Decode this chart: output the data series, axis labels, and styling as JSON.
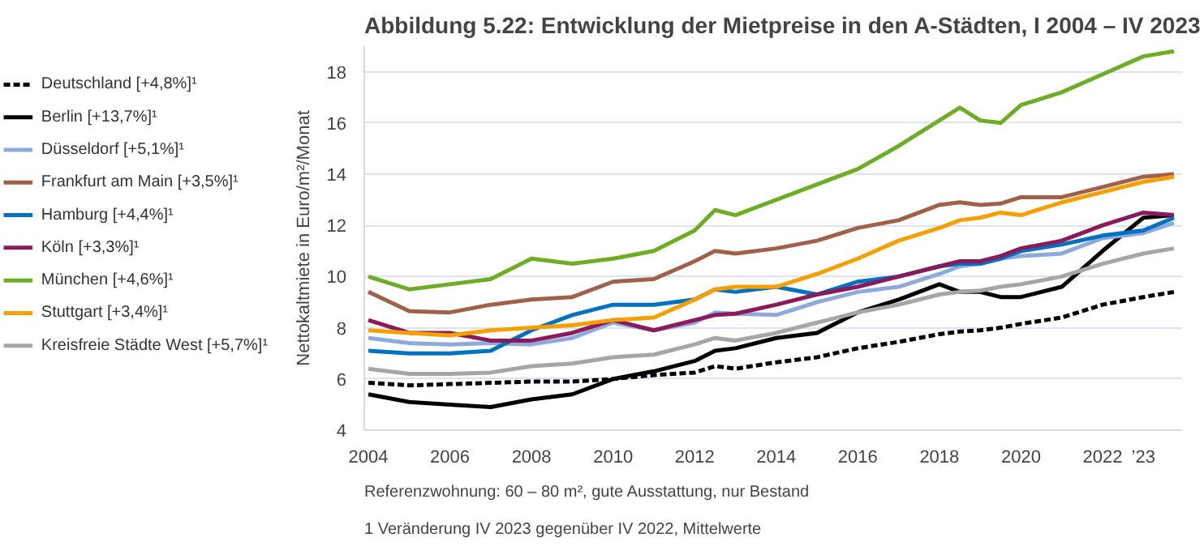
{
  "chart_data": {
    "type": "line",
    "title": "Abbildung 5.22: Entwicklung der Mietpreise in den A-Städten, I 2004 – IV 2023",
    "ylabel": "Nettokaltmiete in Euro/m²/Monat",
    "x": [
      2004,
      2005,
      2006,
      2007,
      2008,
      2009,
      2010,
      2011,
      2012,
      2012.5,
      2013,
      2014,
      2015,
      2016,
      2017,
      2018,
      2018.5,
      2019,
      2019.5,
      2020,
      2021,
      2022,
      2023,
      2023.75
    ],
    "series": [
      {
        "name": "Deutschland [+4,8%]¹",
        "color": "#000000",
        "line_style": "dashed",
        "values": [
          5.85,
          5.75,
          5.8,
          5.85,
          5.9,
          5.9,
          6.0,
          6.15,
          6.25,
          6.5,
          6.4,
          6.65,
          6.85,
          7.2,
          7.45,
          7.75,
          7.85,
          7.9,
          8.0,
          8.15,
          8.4,
          8.9,
          9.2,
          9.4
        ]
      },
      {
        "name": "Berlin [+13,7%]¹",
        "color": "#000000",
        "values": [
          5.4,
          5.1,
          5.0,
          4.9,
          5.2,
          5.4,
          6.0,
          6.3,
          6.7,
          7.1,
          7.2,
          7.6,
          7.8,
          8.6,
          9.1,
          9.7,
          9.4,
          9.4,
          9.2,
          9.2,
          9.6,
          11.0,
          12.3,
          12.4
        ]
      },
      {
        "name": "Düsseldorf [+5,1%]¹",
        "color": "#8eaadb",
        "values": [
          7.6,
          7.4,
          7.35,
          7.4,
          7.35,
          7.6,
          8.2,
          7.9,
          8.2,
          8.6,
          8.55,
          8.5,
          9.0,
          9.4,
          9.6,
          10.1,
          10.4,
          10.5,
          10.7,
          10.8,
          10.9,
          11.5,
          11.7,
          12.1
        ]
      },
      {
        "name": "Frankfurt am Main [+3,5%]¹",
        "color": "#a0614a",
        "values": [
          9.4,
          8.65,
          8.6,
          8.9,
          9.1,
          9.2,
          9.8,
          9.9,
          10.6,
          11.0,
          10.9,
          11.1,
          11.4,
          11.9,
          12.2,
          12.8,
          12.9,
          12.8,
          12.85,
          13.1,
          13.1,
          13.5,
          13.9,
          14.0
        ]
      },
      {
        "name": "Hamburg [+4,4%]¹",
        "color": "#0070c0",
        "values": [
          7.1,
          7.0,
          7.0,
          7.1,
          7.9,
          8.5,
          8.9,
          8.9,
          9.1,
          9.5,
          9.4,
          9.6,
          9.3,
          9.8,
          10.0,
          10.4,
          10.5,
          10.5,
          10.7,
          11.0,
          11.25,
          11.6,
          11.8,
          12.3
        ]
      },
      {
        "name": "Köln [+3,3%]¹",
        "color": "#8b1a5a",
        "values": [
          8.3,
          7.8,
          7.8,
          7.5,
          7.5,
          7.8,
          8.3,
          7.9,
          8.3,
          8.5,
          8.55,
          8.9,
          9.3,
          9.6,
          10.0,
          10.4,
          10.6,
          10.6,
          10.8,
          11.1,
          11.4,
          12.0,
          12.5,
          12.4
        ]
      },
      {
        "name": "München [+4,6%]¹",
        "color": "#70ad27",
        "values": [
          10.0,
          9.5,
          9.7,
          9.9,
          10.7,
          10.5,
          10.7,
          11.0,
          11.8,
          12.6,
          12.4,
          13.0,
          13.6,
          14.2,
          15.1,
          16.1,
          16.6,
          16.1,
          16.0,
          16.7,
          17.2,
          17.9,
          18.6,
          18.8
        ]
      },
      {
        "name": "Stuttgart [+3,4%]¹",
        "color": "#f5a000",
        "values": [
          7.9,
          7.8,
          7.7,
          7.9,
          8.0,
          8.1,
          8.3,
          8.4,
          9.1,
          9.5,
          9.6,
          9.6,
          10.1,
          10.7,
          11.4,
          11.9,
          12.2,
          12.3,
          12.5,
          12.4,
          12.9,
          13.3,
          13.7,
          13.9
        ]
      },
      {
        "name": "Kreisfreie Städte West [+5,7%]¹",
        "color": "#a6a6a6",
        "values": [
          6.4,
          6.2,
          6.2,
          6.25,
          6.5,
          6.6,
          6.85,
          6.95,
          7.35,
          7.6,
          7.5,
          7.8,
          8.2,
          8.6,
          8.9,
          9.3,
          9.4,
          9.45,
          9.6,
          9.7,
          10.0,
          10.5,
          10.9,
          11.1
        ]
      }
    ],
    "xlim": [
      2003.9,
      2023.95
    ],
    "ylim": [
      4,
      19
    ],
    "xticks": [
      2004,
      2006,
      2008,
      2010,
      2012,
      2014,
      2016,
      2018,
      2020,
      2022,
      {
        "value": 2023,
        "label": "’23"
      }
    ],
    "yticks": [
      4,
      6,
      8,
      10,
      12,
      14,
      16,
      18
    ],
    "grid": "y",
    "legend": "left",
    "line_style": "solid",
    "marker": "none",
    "annotations": [
      "Referenzwohnung: 60 – 80 m², gute Ausstattung, nur Bestand",
      "1  Veränderung IV 2023 gegenüber IV 2022, Mittelwerte"
    ]
  }
}
